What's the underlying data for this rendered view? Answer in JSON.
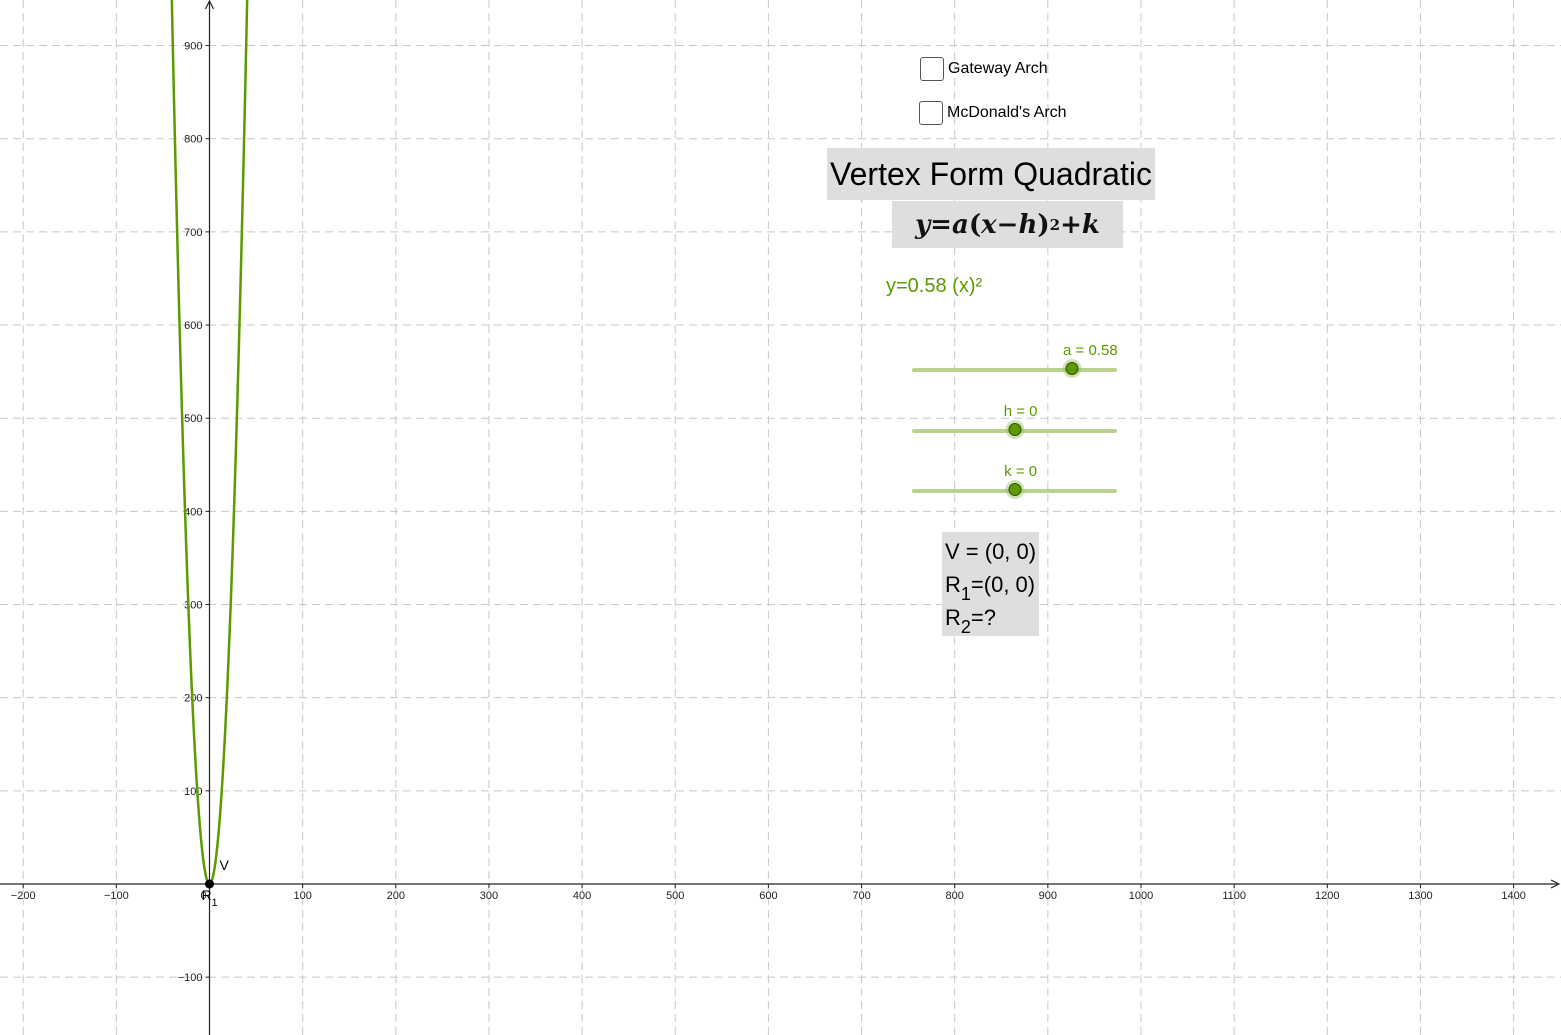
{
  "checkboxes": [
    {
      "label": "Gateway Arch",
      "checked": false
    },
    {
      "label": "McDonald's Arch",
      "checked": false
    }
  ],
  "title": "Vertex Form Quadratic",
  "formula": {
    "lhs": "y",
    "eq": " = ",
    "a": "a",
    "open": "(",
    "x": "x",
    "minus": " − ",
    "h": "h",
    "close": ")",
    "exp": "2",
    "plus": " + ",
    "k": "k"
  },
  "equation_text": "y=0.58 (x)²",
  "sliders": [
    {
      "name": "a",
      "label": "a = 0.58",
      "value": 0.58,
      "fraction": 0.78
    },
    {
      "name": "h",
      "label": "h = 0",
      "value": 0,
      "fraction": 0.5
    },
    {
      "name": "k",
      "label": "k = 0",
      "value": 0,
      "fraction": 0.5
    }
  ],
  "info": {
    "v_line": "V = (0, 0)",
    "r1_prefix": "R",
    "r1_sub": "1",
    "r1_value": "=(0, 0)",
    "r2_prefix": "R",
    "r2_sub": "2",
    "r2_value": "=?"
  },
  "chart_data": {
    "type": "line",
    "function": "y = 0.58 x^2",
    "series": [
      {
        "name": "",
        "color": "#5b9a00",
        "a": 0.58,
        "h": 0,
        "k": 0
      }
    ],
    "x_ticks": [
      "−200",
      "−100",
      "0",
      "100",
      "200",
      "300",
      "400",
      "500",
      "600",
      "700",
      "800",
      "900",
      "1000",
      "1100",
      "1200",
      "1300",
      "1400"
    ],
    "y_ticks": [
      "−100",
      "100",
      "200",
      "300",
      "400",
      "500",
      "600",
      "700",
      "800",
      "900"
    ],
    "xlim": [
      -225,
      1450
    ],
    "ylim": [
      -160,
      950
    ],
    "grid": true,
    "points": [
      {
        "label": "V",
        "x": 0,
        "y": 0
      },
      {
        "label": "R",
        "sub": "1",
        "x": 0,
        "y": 0
      }
    ]
  },
  "colors": {
    "curve": "#5b9a00",
    "grid": "#c8c8c8",
    "panel": "#dedede"
  }
}
